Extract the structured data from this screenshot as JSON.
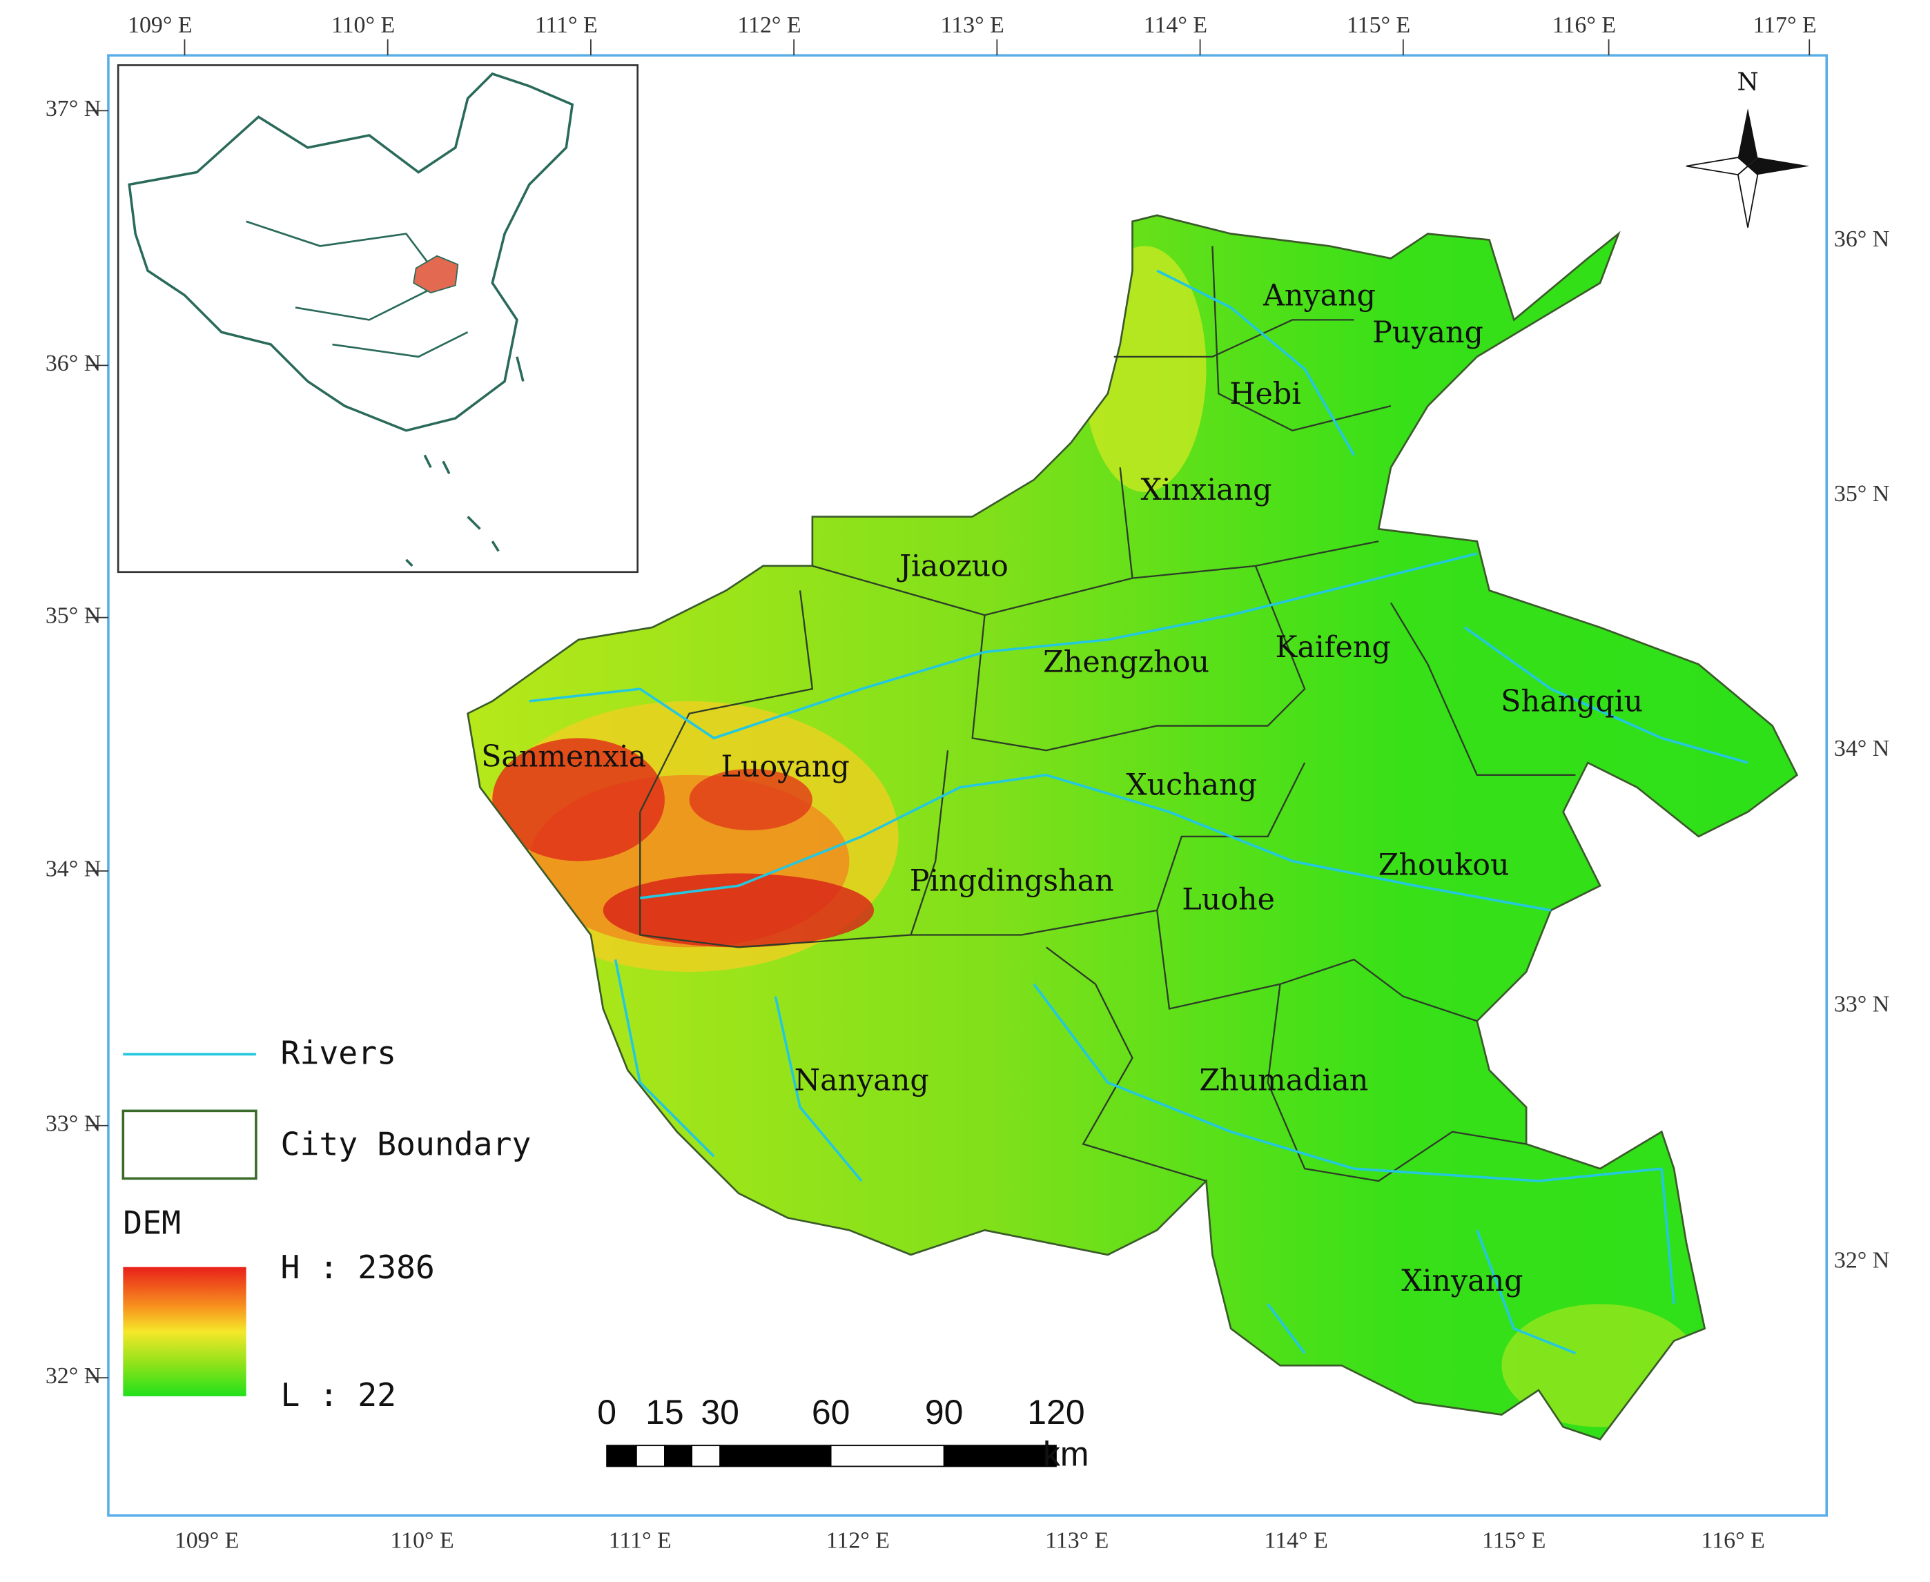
{
  "frame": {
    "top_longitudes": [
      "109° E",
      "110° E",
      "111° E",
      "112° E",
      "113° E",
      "114° E",
      "115° E",
      "116° E",
      "117° E"
    ],
    "bottom_longitudes": [
      "109° E",
      "110° E",
      "111° E",
      "112° E",
      "113° E",
      "114° E",
      "115° E",
      "116° E"
    ],
    "left_latitudes": [
      "37° N",
      "36° N",
      "35° N",
      "34° N",
      "33° N",
      "32° N"
    ],
    "right_latitudes": [
      "36° N",
      "35° N",
      "34° N",
      "33° N",
      "32° N"
    ]
  },
  "cities": [
    "Anyang",
    "Puyang",
    "Hebi",
    "Xinxiang",
    "Jiaozuo",
    "Zhengzhou",
    "Kaifeng",
    "Shangqiu",
    "Sanmenxia",
    "Luoyang",
    "Xuchang",
    "Pingdingshan",
    "Luohe",
    "Zhoukou",
    "Nanyang",
    "Zhumadian",
    "Xinyang"
  ],
  "legend": {
    "rivers": "Rivers",
    "city_boundary": "City Boundary",
    "dem_title": "DEM",
    "dem_high": "H : 2386",
    "dem_low": "L : 22"
  },
  "scale_bar": {
    "labels": [
      "0",
      "15",
      "30",
      "60",
      "90",
      "120"
    ],
    "unit": "km"
  },
  "north_label": "N"
}
